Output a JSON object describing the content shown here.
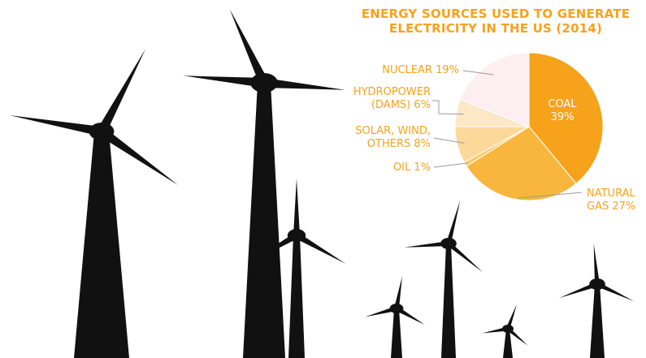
{
  "chart_data": {
    "type": "pie",
    "title_lines": [
      "ENERGY SOURCES USED TO GENERATE",
      "ELECTRICITY IN THE US (2014)"
    ],
    "slices": [
      {
        "label_lines": [
          "COAL",
          "39%"
        ],
        "value": 39,
        "color": "#f7a21b"
      },
      {
        "label_lines": [
          "NATURAL",
          "GAS 27%"
        ],
        "value": 27,
        "color": "#f8b63d"
      },
      {
        "label_lines": [
          "OIL 1%"
        ],
        "value": 1,
        "color": "#fbcb70"
      },
      {
        "label_lines": [
          "SOLAR, WIND,",
          "OTHERS 8%"
        ],
        "value": 8,
        "color": "#fcd99a"
      },
      {
        "label_lines": [
          "HYDROPOWER",
          "(DAMS) 6%"
        ],
        "value": 6,
        "color": "#fde7c7"
      },
      {
        "label_lines": [
          "NUCLEAR 19%"
        ],
        "value": 19,
        "color": "#fdeef2"
      }
    ],
    "legend": "none"
  },
  "colors": {
    "accent": "#f7a21b",
    "silhouette": "#111111"
  }
}
